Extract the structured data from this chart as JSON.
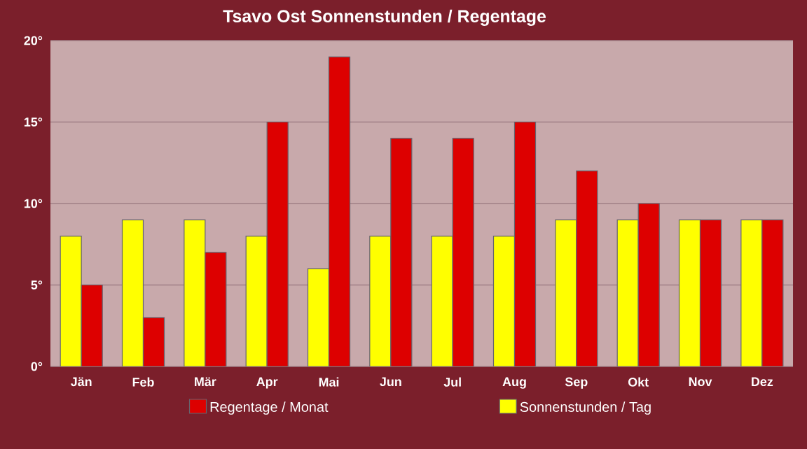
{
  "chart_data": {
    "type": "bar",
    "title": "Tsavo Ost Sonnenstunden / Regentage",
    "categories": [
      "Jän",
      "Feb",
      "Mär",
      "Apr",
      "Mai",
      "Jun",
      "Jul",
      "Aug",
      "Sep",
      "Okt",
      "Nov",
      "Dez"
    ],
    "series": [
      {
        "name": "Sonnenstunden / Tag",
        "color": "#ffff00",
        "values": [
          8,
          9,
          9,
          8,
          6,
          8,
          8,
          8,
          9,
          9,
          9,
          9
        ]
      },
      {
        "name": "Regentage / Monat",
        "color": "#dd0000",
        "values": [
          5,
          3,
          7,
          15,
          19,
          14,
          14,
          15,
          12,
          10,
          9,
          9
        ]
      }
    ],
    "ylim": [
      0,
      20
    ],
    "yticks": [
      {
        "value": 0,
        "label": "0°"
      },
      {
        "value": 5,
        "label": "5°"
      },
      {
        "value": 10,
        "label": "10°"
      },
      {
        "value": 15,
        "label": "15°"
      },
      {
        "value": 20,
        "label": "20°"
      }
    ],
    "grid": "y",
    "legend": "bottom"
  }
}
